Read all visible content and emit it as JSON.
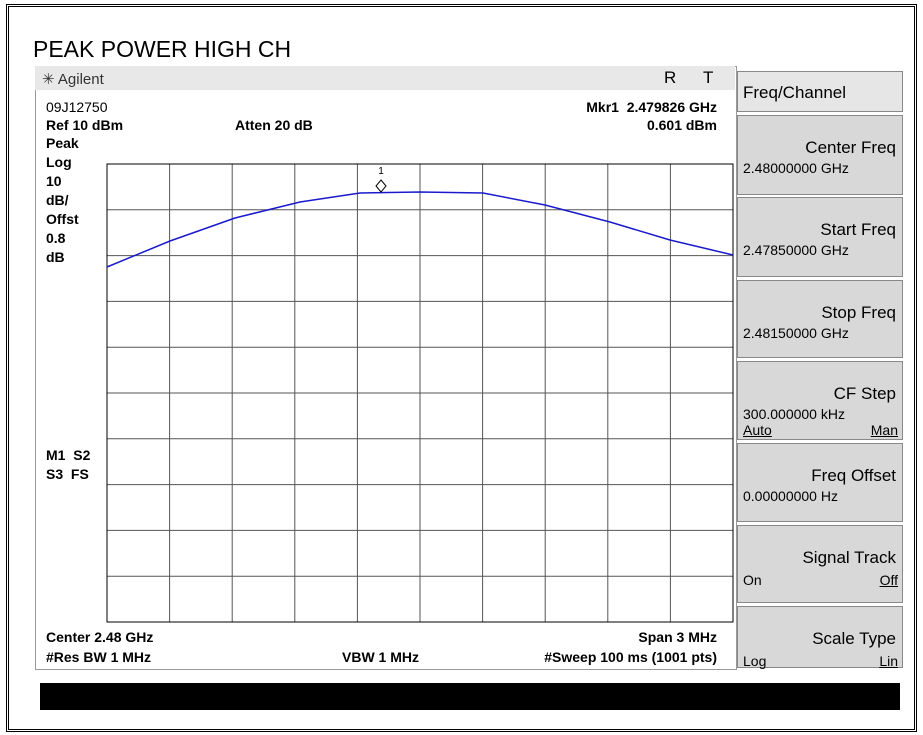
{
  "header": {
    "title": "PEAK POWER HIGH CH",
    "brand": "Agilent",
    "indicators": [
      "R",
      "T"
    ]
  },
  "screen": {
    "top_left": "09J12750",
    "marker": "Mkr1  2.479826 GHz",
    "ref": "Ref 10 dBm",
    "atten": "Atten 20 dB",
    "marker_level": "0.601 dBm",
    "left_labels": [
      "Peak",
      "Log",
      "10",
      "dB/",
      "Offst",
      "0.8",
      "dB"
    ],
    "status": [
      "M1  S2",
      "S3  FS"
    ],
    "marker_label": "1",
    "center": "Center 2.48 GHz",
    "span": "Span 3 MHz",
    "rbw": "#Res BW 1 MHz",
    "vbw": "VBW 1 MHz",
    "sweep": "#Sweep 100 ms (1001 pts)"
  },
  "softkeys": {
    "title": "Freq/Channel",
    "keys": [
      {
        "label": "Center Freq",
        "value": "2.48000000 GHz"
      },
      {
        "label": "Start Freq",
        "value": "2.47850000 GHz"
      },
      {
        "label": "Stop Freq",
        "value": "2.48150000 GHz"
      },
      {
        "label": "CF Step",
        "value": "300.000000 kHz",
        "options": [
          "Auto",
          "Man"
        ]
      },
      {
        "label": "Freq Offset",
        "value": "0.00000000  Hz"
      },
      {
        "label": "Signal Track",
        "options": [
          "On",
          "Off"
        ]
      },
      {
        "label": "Scale Type",
        "options": [
          "Log",
          "Lin"
        ]
      }
    ]
  }
}
